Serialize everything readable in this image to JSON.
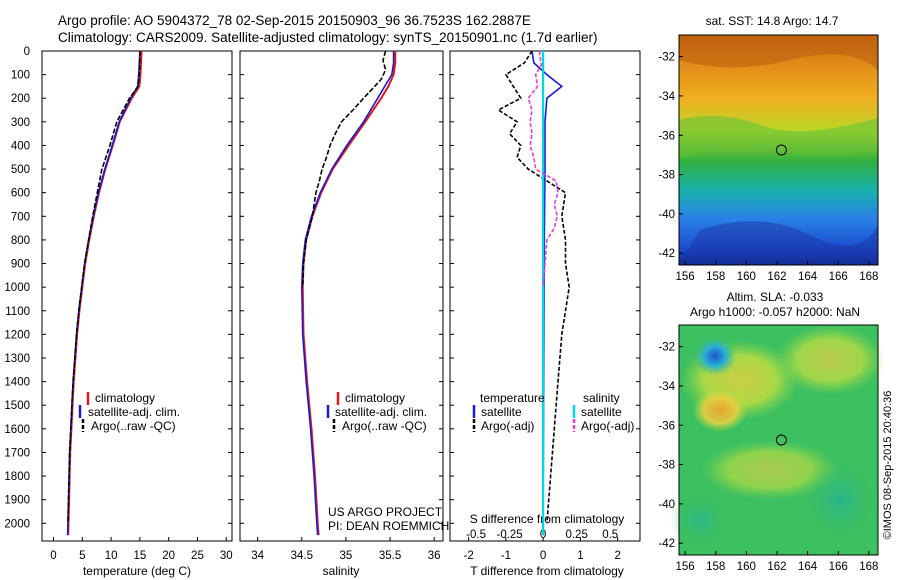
{
  "header": {
    "line1": "Argo profile: AO 5904372_78 02-Sep-2015 20150903_96 36.7523S 162.2887E",
    "line2": "Climatology: CARS2009. Satellite-adjusted climatology: synTS_20150901.nc (1.7d earlier)"
  },
  "colors": {
    "climatology": "#e0191c",
    "satellite": "#1a1ad6",
    "argo": "#000000",
    "sal_satellite": "#00d8e8",
    "sal_argo": "#e23fd3"
  },
  "chart_data": [
    {
      "type": "line",
      "panel": "temperature",
      "xlabel": "temperature (deg C)",
      "ylabel": "",
      "xlim": [
        -2,
        31
      ],
      "ylim": [
        2075,
        0
      ],
      "xticks": [
        "0",
        "5",
        "10",
        "15",
        "20",
        "25",
        "30"
      ],
      "yticks": [
        "0",
        "100",
        "200",
        "300",
        "400",
        "500",
        "600",
        "700",
        "800",
        "900",
        "1000",
        "1100",
        "1200",
        "1300",
        "1400",
        "1500",
        "1600",
        "1700",
        "1800",
        "1900",
        "2000"
      ],
      "legend": [
        "climatology",
        "satellite-adj. clim.",
        "Argo(..raw -QC)"
      ],
      "series": [
        {
          "name": "climatology",
          "depth": [
            0,
            50,
            100,
            150,
            200,
            300,
            400,
            500,
            600,
            700,
            800,
            900,
            1000,
            1100,
            1200,
            1300,
            1400,
            1500,
            1600,
            1700,
            1800,
            1900,
            2000,
            2050
          ],
          "values": [
            15.3,
            15.2,
            15.1,
            14.9,
            13.6,
            11.5,
            10.3,
            9.0,
            7.9,
            7.0,
            6.2,
            5.5,
            5.0,
            4.5,
            4.1,
            3.8,
            3.5,
            3.3,
            3.1,
            2.9,
            2.8,
            2.7,
            2.6,
            2.55
          ]
        },
        {
          "name": "satellite-adj. clim.",
          "depth": [
            0,
            50,
            100,
            150,
            200,
            300,
            400,
            500,
            600,
            700,
            800,
            900,
            1000,
            1100,
            1200,
            1300,
            1400,
            1500,
            1600,
            1700,
            1800,
            1900,
            2000,
            2050
          ],
          "values": [
            15.0,
            14.9,
            14.8,
            14.6,
            13.4,
            11.4,
            10.2,
            8.9,
            7.8,
            6.9,
            6.1,
            5.4,
            4.9,
            4.4,
            4.0,
            3.7,
            3.4,
            3.2,
            3.0,
            2.8,
            2.7,
            2.6,
            2.5,
            2.45
          ]
        },
        {
          "name": "Argo(..raw -QC)",
          "depth": [
            0,
            50,
            100,
            150,
            200,
            300,
            400,
            500,
            600,
            700,
            800,
            900,
            1000,
            1100,
            1200,
            1300,
            1400,
            1500,
            1600,
            1700,
            1800,
            1900,
            2000
          ],
          "values": [
            15.0,
            15.0,
            14.9,
            14.7,
            13.2,
            11.0,
            9.8,
            8.4,
            7.6,
            6.8,
            6.1,
            5.4,
            4.9,
            4.4,
            4.0,
            3.7,
            3.4,
            3.2,
            3.0,
            2.8,
            2.7,
            2.6,
            2.5
          ]
        }
      ]
    },
    {
      "type": "line",
      "panel": "salinity",
      "xlabel": "salinity",
      "xlim": [
        33.8,
        36.1
      ],
      "ylim": [
        2075,
        0
      ],
      "xticks": [
        "34",
        "34.5",
        "35",
        "35.5",
        "36"
      ],
      "legend": [
        "climatology",
        "satellite-adj. clim.",
        "Argo(..raw -QC)"
      ],
      "annotation": [
        "US ARGO PROJECT",
        "PI: DEAN ROEMMICH"
      ],
      "series": [
        {
          "name": "climatology",
          "depth": [
            0,
            50,
            100,
            150,
            200,
            300,
            400,
            500,
            600,
            700,
            800,
            900,
            1000,
            1200,
            1400,
            1600,
            1800,
            2000,
            2050
          ],
          "values": [
            35.56,
            35.56,
            35.54,
            35.48,
            35.4,
            35.22,
            35.03,
            34.85,
            34.72,
            34.62,
            34.55,
            34.52,
            34.51,
            34.52,
            34.56,
            34.61,
            34.65,
            34.68,
            34.69
          ]
        },
        {
          "name": "satellite-adj. clim.",
          "depth": [
            0,
            50,
            100,
            150,
            200,
            300,
            400,
            500,
            600,
            700,
            800,
            900,
            1000,
            1200,
            1400,
            1600,
            1800,
            2000,
            2050
          ],
          "values": [
            35.54,
            35.54,
            35.52,
            35.44,
            35.36,
            35.2,
            35.01,
            34.84,
            34.71,
            34.61,
            34.54,
            34.51,
            34.5,
            34.51,
            34.55,
            34.6,
            34.64,
            34.67,
            34.68
          ]
        },
        {
          "name": "Argo(..raw -QC)",
          "depth": [
            0,
            40,
            80,
            120,
            160,
            200,
            250,
            300,
            350,
            400,
            450,
            500,
            550,
            600,
            650,
            700,
            800,
            900,
            1000
          ],
          "values": [
            35.45,
            35.42,
            35.45,
            35.4,
            35.3,
            35.2,
            35.08,
            34.95,
            34.88,
            34.82,
            34.78,
            34.73,
            34.7,
            34.66,
            34.64,
            34.62,
            34.55,
            34.52,
            34.51
          ]
        }
      ]
    },
    {
      "type": "line",
      "panel": "difference",
      "xlabel_top": "S difference from climatology",
      "xlabel": "T difference from climatology",
      "xlim": [
        -2.5,
        2.6
      ],
      "ylim": [
        2075,
        0
      ],
      "xticks_T": [
        "-2",
        "-1",
        "0",
        "1",
        "2"
      ],
      "xticks_S": [
        "-0.5",
        "-0.25",
        "0",
        "0.25",
        "0.5"
      ],
      "legend_temperature": {
        "title": "temperature",
        "items": [
          "satellite",
          "Argo(-adj)"
        ]
      },
      "legend_salinity": {
        "title": "salinity",
        "items": [
          "satellite",
          "Argo(-adj)"
        ]
      },
      "series": [
        {
          "name": "temperature satellite",
          "depth": [
            0,
            50,
            100,
            150,
            200,
            300,
            500,
            800,
            1200,
            1600,
            2000,
            2050
          ],
          "values": [
            -0.3,
            -0.25,
            0.1,
            0.5,
            0.1,
            0.05,
            0.05,
            0.03,
            0.02,
            0.01,
            0.0,
            0.0
          ]
        },
        {
          "name": "temperature Argo(-adj)",
          "depth": [
            0,
            50,
            100,
            150,
            200,
            250,
            300,
            350,
            400,
            450,
            500,
            600,
            700,
            800,
            900,
            1000,
            1100,
            1200,
            1400,
            1600,
            1800,
            2000
          ],
          "values": [
            -0.3,
            -0.5,
            -1.0,
            -0.8,
            -0.6,
            -1.2,
            -0.7,
            -0.9,
            -0.6,
            -0.7,
            -0.4,
            0.6,
            0.5,
            0.6,
            0.6,
            0.7,
            0.6,
            0.5,
            0.4,
            0.3,
            0.2,
            0.1
          ]
        },
        {
          "name": "salinity satellite",
          "depth": [
            0,
            100,
            200,
            400,
            800,
            1200,
            1600,
            2000,
            2050
          ],
          "values": [
            0.0,
            0.0,
            0.0,
            0.0,
            0.0,
            0.0,
            0.0,
            0.0,
            0.0
          ]
        },
        {
          "name": "salinity Argo(-adj)",
          "depth": [
            0,
            60,
            100,
            150,
            200,
            250,
            300,
            350,
            400,
            450,
            500,
            550,
            600,
            650,
            700,
            750,
            800,
            900,
            1000
          ],
          "values": [
            -0.1,
            -0.05,
            -0.2,
            -0.15,
            -0.4,
            -0.3,
            -0.35,
            -0.3,
            -0.35,
            -0.25,
            -0.2,
            0.35,
            0.4,
            0.3,
            0.38,
            0.3,
            0.1,
            0.05,
            0.0
          ]
        }
      ]
    },
    {
      "type": "heatmap",
      "panel": "sst-map",
      "title": "sat. SST: 14.8  Argo: 14.7",
      "xticks": [
        "156",
        "158",
        "160",
        "162",
        "164",
        "166",
        "168"
      ],
      "yticks": [
        "-32",
        "-34",
        "-36",
        "-38",
        "-40",
        "-42"
      ],
      "xlim": [
        155.6,
        168.6
      ],
      "ylim": [
        -42.6,
        -30.9
      ],
      "marker": {
        "lon": 162.29,
        "lat": -36.75
      }
    },
    {
      "type": "heatmap",
      "panel": "sla-map",
      "title_line1": "Altim. SLA: -0.033",
      "title_line2": "Argo h1000: -0.057 h2000: NaN",
      "xticks": [
        "156",
        "158",
        "160",
        "162",
        "164",
        "166",
        "168"
      ],
      "yticks": [
        "-32",
        "-34",
        "-36",
        "-38",
        "-40",
        "-42"
      ],
      "xlim": [
        155.6,
        168.6
      ],
      "ylim": [
        -42.6,
        -30.9
      ],
      "marker": {
        "lon": 162.29,
        "lat": -36.75
      },
      "side_text": "©IMOS 08-Sep-2015 20:40:36"
    }
  ]
}
